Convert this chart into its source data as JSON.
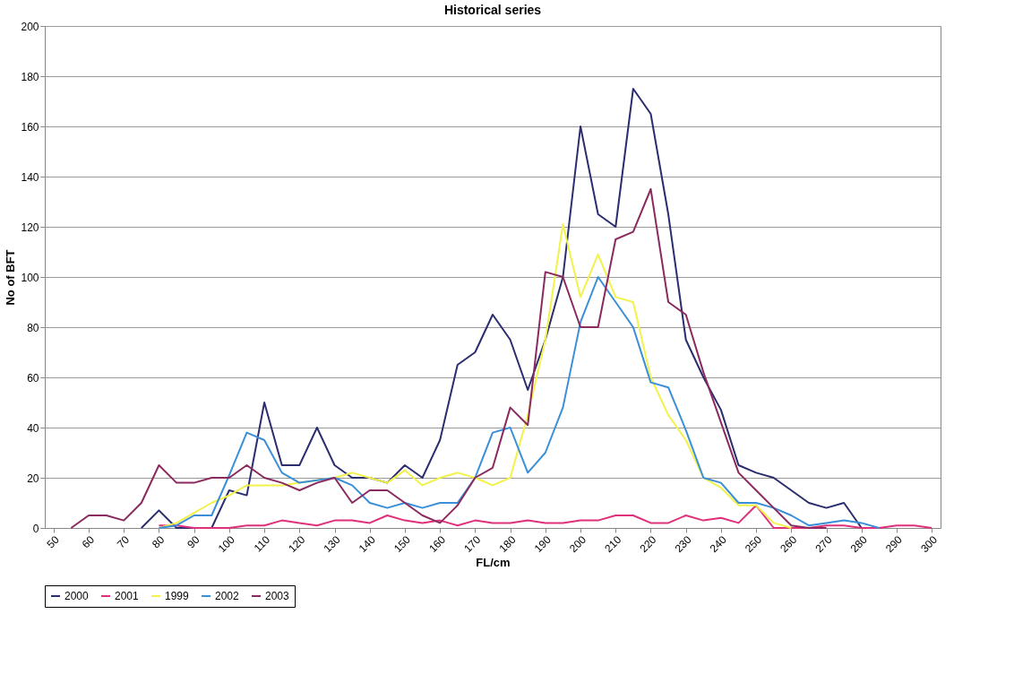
{
  "chart_data": {
    "type": "line",
    "title": "Historical series",
    "xlabel": "FL/cm",
    "ylabel": "No of BFT",
    "xlim": [
      47.5,
      302.5
    ],
    "xticks": [
      50,
      60,
      70,
      80,
      90,
      100,
      110,
      120,
      130,
      140,
      150,
      160,
      170,
      180,
      190,
      200,
      210,
      220,
      230,
      240,
      250,
      260,
      270,
      280,
      290,
      300
    ],
    "ylim": [
      0,
      200
    ],
    "yticks": [
      0,
      20,
      40,
      60,
      80,
      100,
      120,
      140,
      160,
      180,
      200
    ],
    "grid": "y",
    "legend": "bottom",
    "marker": "none",
    "line_style": "solid",
    "series": [
      {
        "name": "2000",
        "color": "#2b2d6e",
        "x": [
          75,
          80,
          85,
          90,
          95,
          100,
          105,
          110,
          115,
          120,
          125,
          130,
          135,
          140,
          145,
          150,
          155,
          160,
          165,
          170,
          175,
          180,
          185,
          190,
          195,
          200,
          205,
          210,
          215,
          220,
          225,
          230,
          235,
          240,
          245,
          250,
          255,
          260,
          265,
          270,
          275,
          280
        ],
        "values": [
          0,
          7,
          0,
          0,
          0,
          15,
          13,
          50,
          25,
          25,
          40,
          25,
          20,
          20,
          18,
          25,
          20,
          35,
          65,
          70,
          85,
          75,
          55,
          75,
          100,
          160,
          125,
          120,
          175,
          165,
          125,
          75,
          60,
          47,
          25,
          22,
          20,
          15,
          10,
          8,
          10,
          0
        ]
      },
      {
        "name": "2001",
        "color": "#e0307a",
        "x": [
          80,
          85,
          90,
          95,
          100,
          105,
          110,
          115,
          120,
          125,
          130,
          135,
          140,
          145,
          150,
          155,
          160,
          165,
          170,
          175,
          180,
          185,
          190,
          195,
          200,
          205,
          210,
          215,
          220,
          225,
          230,
          235,
          240,
          245,
          250,
          255,
          260,
          265,
          270,
          275,
          280,
          285,
          290,
          295,
          300
        ],
        "values": [
          1,
          1,
          0,
          0,
          0,
          1,
          1,
          3,
          2,
          1,
          3,
          3,
          2,
          5,
          3,
          2,
          3,
          1,
          3,
          2,
          2,
          3,
          2,
          2,
          3,
          3,
          5,
          5,
          2,
          2,
          5,
          3,
          4,
          2,
          9,
          0,
          0,
          0,
          1,
          1,
          0,
          0,
          1,
          1,
          0
        ]
      },
      {
        "name": "1999",
        "color": "#f2f24a",
        "x": [
          80,
          85,
          90,
          95,
          100,
          105,
          110,
          115,
          120,
          125,
          130,
          135,
          140,
          145,
          150,
          155,
          160,
          165,
          170,
          175,
          180,
          185,
          190,
          195,
          200,
          205,
          210,
          215,
          220,
          225,
          230,
          235,
          240,
          245,
          250,
          255,
          260
        ],
        "values": [
          0,
          2,
          6,
          10,
          13,
          17,
          17,
          17,
          18,
          19,
          20,
          22,
          20,
          18,
          23,
          17,
          20,
          22,
          20,
          17,
          20,
          45,
          75,
          121,
          92,
          109,
          92,
          90,
          60,
          45,
          35,
          20,
          16,
          9,
          9,
          2,
          0
        ]
      },
      {
        "name": "2002",
        "color": "#3a8fd8",
        "x": [
          80,
          85,
          90,
          95,
          100,
          105,
          110,
          115,
          120,
          125,
          130,
          135,
          140,
          145,
          150,
          155,
          160,
          165,
          170,
          175,
          180,
          185,
          190,
          195,
          200,
          205,
          210,
          215,
          220,
          225,
          230,
          235,
          240,
          245,
          250,
          255,
          260,
          265,
          270,
          275,
          280,
          285
        ],
        "values": [
          0,
          1,
          5,
          5,
          21,
          38,
          35,
          22,
          18,
          19,
          20,
          17,
          10,
          8,
          10,
          8,
          10,
          10,
          20,
          38,
          40,
          22,
          30,
          48,
          82,
          100,
          90,
          80,
          58,
          56,
          39,
          20,
          18,
          10,
          10,
          8,
          5,
          1,
          2,
          3,
          2,
          0
        ]
      },
      {
        "name": "2003",
        "color": "#8b2a5e",
        "x": [
          55,
          60,
          65,
          70,
          75,
          80,
          85,
          90,
          95,
          100,
          105,
          110,
          115,
          120,
          125,
          130,
          135,
          140,
          145,
          150,
          155,
          160,
          165,
          170,
          175,
          180,
          185,
          190,
          195,
          200,
          205,
          210,
          215,
          220,
          225,
          230,
          235,
          240,
          245,
          250,
          255,
          260,
          265,
          270
        ],
        "values": [
          0,
          5,
          5,
          3,
          10,
          25,
          18,
          18,
          20,
          20,
          25,
          20,
          18,
          15,
          18,
          20,
          10,
          15,
          15,
          10,
          5,
          2,
          9,
          20,
          24,
          48,
          41,
          102,
          100,
          80,
          80,
          115,
          118,
          135,
          90,
          85,
          62,
          42,
          22,
          15,
          8,
          1,
          0,
          0
        ]
      }
    ]
  }
}
